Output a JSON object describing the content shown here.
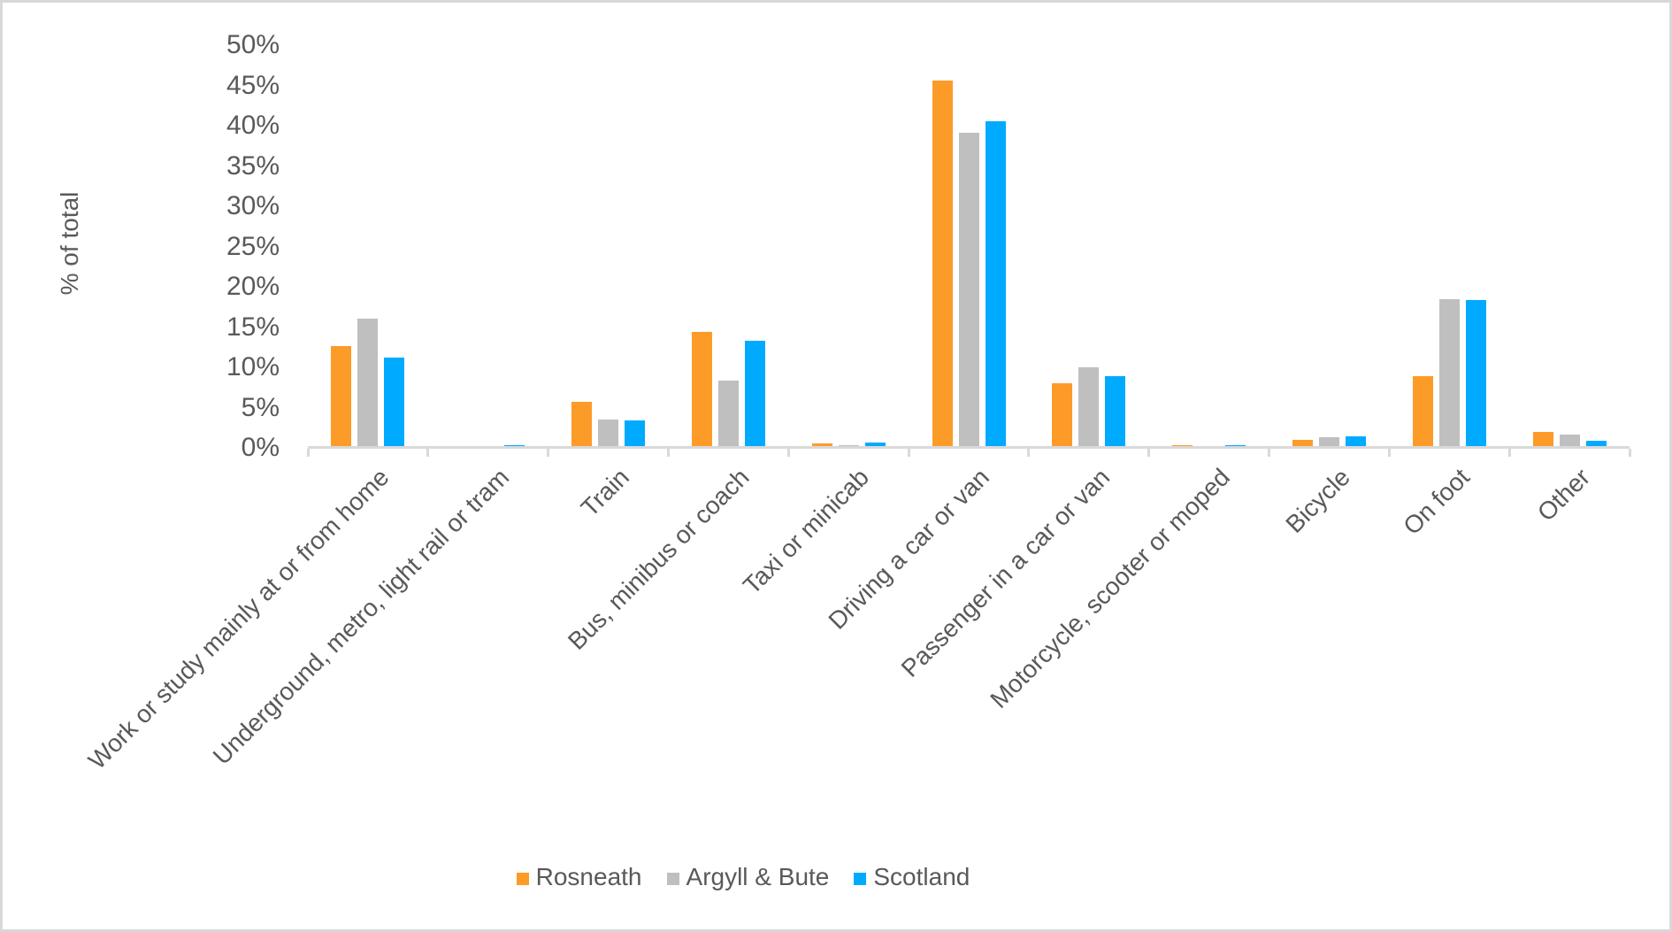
{
  "chart_data": {
    "type": "bar",
    "title": "",
    "ylabel": "% of total",
    "xlabel": "",
    "ylim": [
      0,
      50
    ],
    "ytick_step": 5,
    "ytick_suffix": "%",
    "grid": false,
    "legend_position": "bottom",
    "axis_color": "#d9d9d9",
    "text_color": "#595959",
    "categories": [
      "Work or study mainly at or from home",
      "Underground, metro, light rail or tram",
      "Train",
      "Bus, minibus or coach",
      "Taxi or minicab",
      "Driving a car or van",
      "Passenger in a car or van",
      "Motorcycle, scooter or moped",
      "Bicycle",
      "On foot",
      "Other"
    ],
    "series": [
      {
        "name": "Rosneath",
        "color": "#FD9B28",
        "values": [
          12.6,
          0.0,
          5.7,
          14.4,
          0.6,
          45.6,
          8.0,
          0.3,
          1.0,
          8.9,
          2.0
        ]
      },
      {
        "name": "Argyll & Bute",
        "color": "#BFBFBF",
        "values": [
          16.0,
          0.0,
          3.5,
          8.4,
          0.3,
          39.1,
          10.0,
          0.2,
          1.3,
          18.5,
          1.6
        ]
      },
      {
        "name": "Scotland",
        "color": "#00AAFF",
        "values": [
          11.2,
          0.3,
          3.4,
          13.3,
          0.7,
          40.6,
          8.9,
          0.3,
          1.4,
          18.4,
          0.9
        ]
      }
    ]
  }
}
